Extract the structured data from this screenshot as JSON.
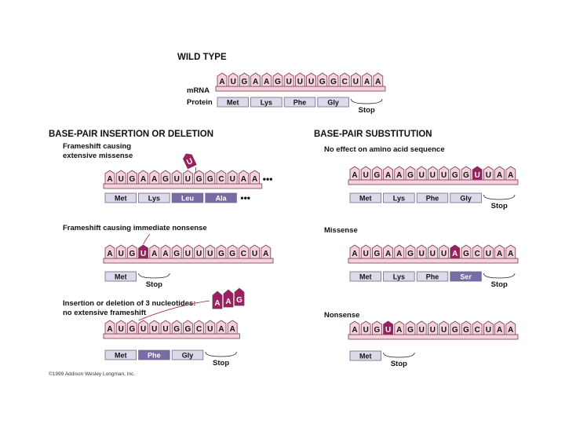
{
  "headings": {
    "wild_type": "WILD TYPE",
    "insertion_deletion": "BASE-PAIR INSERTION OR DELETION",
    "substitution": "BASE-PAIR SUBSTITUTION"
  },
  "labels": {
    "mrna": "mRNA",
    "protein": "Protein",
    "copyright": "©1999 Addison Wesley Longman, Inc."
  },
  "colors": {
    "nucleotide_fill": "#f4d3dc",
    "nucleotide_stroke": "#7a3c52",
    "mutant_nucleotide": "#9c1f62",
    "amino_acid_fill": "#dcdaea",
    "mutant_amino_acid": "#7a6aa6"
  },
  "panels": [
    {
      "id": "wild-type",
      "title": "",
      "sequence": [
        "A",
        "U",
        "G",
        "A",
        "A",
        "G",
        "U",
        "U",
        "U",
        "G",
        "G",
        "C",
        "U",
        "A",
        "A"
      ],
      "mutant_positions": [],
      "trailing_dots": false,
      "codons": [
        {
          "label": "Met",
          "mutant": false
        },
        {
          "label": "Lys",
          "mutant": false
        },
        {
          "label": "Phe",
          "mutant": false
        },
        {
          "label": "Gly",
          "mutant": false
        }
      ],
      "stop": "Stop",
      "codon_dots": false
    },
    {
      "id": "frameshift-missense",
      "title": "Frameshift causing extensive missense",
      "title_lines": [
        "Frameshift causing",
        "extensive missense"
      ],
      "sequence": [
        "A",
        "U",
        "G",
        "A",
        "A",
        "G",
        "U",
        "U",
        "G",
        "G",
        "C",
        "U",
        "A",
        "A"
      ],
      "mutant_positions": [],
      "trailing_dots": true,
      "deleted_nucleotide": "U",
      "codons": [
        {
          "label": "Met",
          "mutant": false
        },
        {
          "label": "Lys",
          "mutant": false
        },
        {
          "label": "Leu",
          "mutant": true
        },
        {
          "label": "Ala",
          "mutant": true
        }
      ],
      "stop": "",
      "codon_dots": true
    },
    {
      "id": "frameshift-nonsense",
      "title": "Frameshift causing immediate nonsense",
      "sequence": [
        "A",
        "U",
        "G",
        "U",
        "A",
        "A",
        "G",
        "U",
        "U",
        "U",
        "G",
        "G",
        "C",
        "U",
        "A"
      ],
      "mutant_positions": [
        3
      ],
      "trailing_dots": false,
      "codons": [
        {
          "label": "Met",
          "mutant": false
        }
      ],
      "stop": "Stop",
      "codon_dots": false
    },
    {
      "id": "insertion-3",
      "title_lines": [
        "Insertion or deletion of 3 nucleotides:",
        "no extensive frameshift"
      ],
      "sequence": [
        "A",
        "U",
        "G",
        "U",
        "U",
        "U",
        "G",
        "G",
        "C",
        "U",
        "A",
        "A"
      ],
      "mutant_positions": [],
      "trailing_dots": false,
      "removed_nucleotides": [
        "A",
        "A",
        "G"
      ],
      "codons": [
        {
          "label": "Met",
          "mutant": false
        },
        {
          "label": "Phe",
          "mutant": true
        },
        {
          "label": "Gly",
          "mutant": false
        }
      ],
      "stop": "Stop",
      "codon_dots": false
    },
    {
      "id": "no-effect",
      "title": "No effect on amino acid sequence",
      "sequence": [
        "A",
        "U",
        "G",
        "A",
        "A",
        "G",
        "U",
        "U",
        "U",
        "G",
        "G",
        "U",
        "U",
        "A",
        "A"
      ],
      "mutant_positions": [
        11
      ],
      "trailing_dots": false,
      "codons": [
        {
          "label": "Met",
          "mutant": false
        },
        {
          "label": "Lys",
          "mutant": false
        },
        {
          "label": "Phe",
          "mutant": false
        },
        {
          "label": "Gly",
          "mutant": false
        }
      ],
      "stop": "Stop",
      "codon_dots": false
    },
    {
      "id": "missense",
      "title": "Missense",
      "sequence": [
        "A",
        "U",
        "G",
        "A",
        "A",
        "G",
        "U",
        "U",
        "U",
        "A",
        "G",
        "C",
        "U",
        "A",
        "A"
      ],
      "mutant_positions": [
        9
      ],
      "trailing_dots": false,
      "codons": [
        {
          "label": "Met",
          "mutant": false
        },
        {
          "label": "Lys",
          "mutant": false
        },
        {
          "label": "Phe",
          "mutant": false
        },
        {
          "label": "Ser",
          "mutant": true
        }
      ],
      "stop": "Stop",
      "codon_dots": false
    },
    {
      "id": "nonsense",
      "title": "Nonsense",
      "sequence": [
        "A",
        "U",
        "G",
        "U",
        "A",
        "G",
        "U",
        "U",
        "U",
        "G",
        "G",
        "C",
        "U",
        "A",
        "A"
      ],
      "mutant_positions": [
        3
      ],
      "trailing_dots": false,
      "codons": [
        {
          "label": "Met",
          "mutant": false
        }
      ],
      "stop": "Stop",
      "codon_dots": false
    }
  ]
}
